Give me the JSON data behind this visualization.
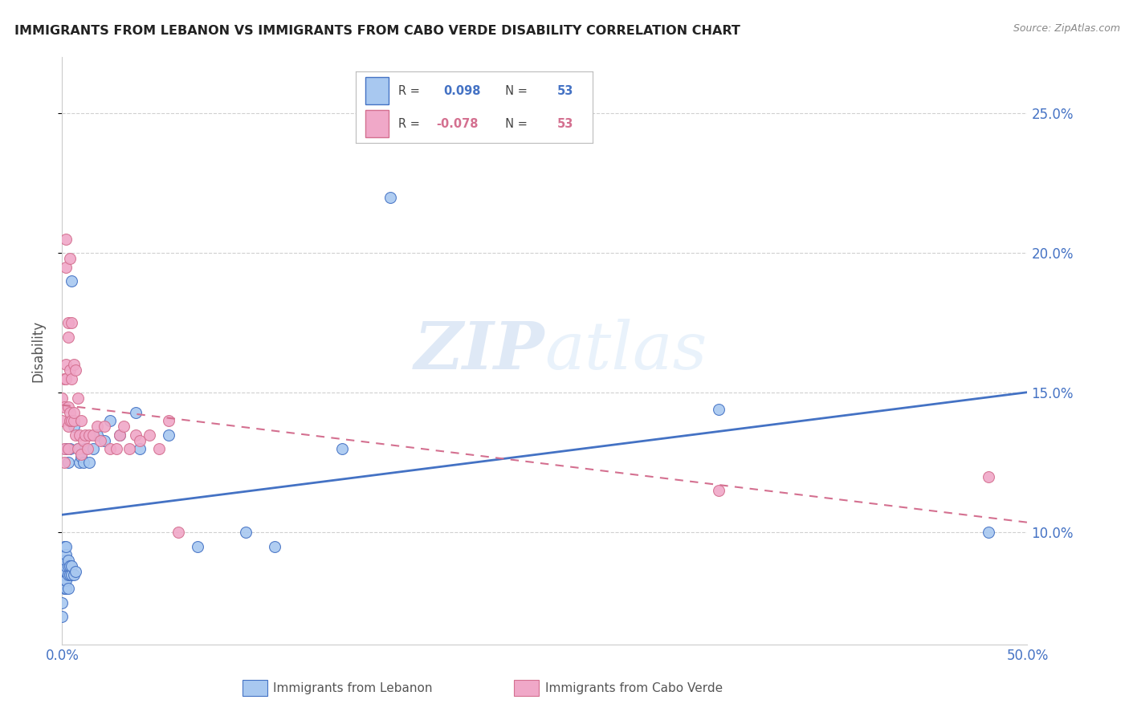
{
  "title": "IMMIGRANTS FROM LEBANON VS IMMIGRANTS FROM CABO VERDE DISABILITY CORRELATION CHART",
  "source": "Source: ZipAtlas.com",
  "ylabel": "Disability",
  "color_lebanon": "#a8c8f0",
  "color_caboverde": "#f0a8c8",
  "color_lebanon_line": "#4472c4",
  "color_caboverde_line": "#d47090",
  "background_color": "#ffffff",
  "xlim": [
    0.0,
    0.5
  ],
  "ylim": [
    0.06,
    0.27
  ],
  "lebanon_x": [
    0.0,
    0.0,
    0.001,
    0.001,
    0.001,
    0.001,
    0.001,
    0.001,
    0.001,
    0.002,
    0.002,
    0.002,
    0.002,
    0.002,
    0.002,
    0.002,
    0.002,
    0.003,
    0.003,
    0.003,
    0.003,
    0.003,
    0.003,
    0.004,
    0.004,
    0.004,
    0.005,
    0.005,
    0.005,
    0.006,
    0.006,
    0.007,
    0.008,
    0.009,
    0.01,
    0.011,
    0.012,
    0.014,
    0.016,
    0.018,
    0.022,
    0.025,
    0.03,
    0.038,
    0.04,
    0.055,
    0.07,
    0.095,
    0.11,
    0.145,
    0.17,
    0.34,
    0.48
  ],
  "lebanon_y": [
    0.07,
    0.075,
    0.08,
    0.082,
    0.085,
    0.087,
    0.088,
    0.09,
    0.095,
    0.08,
    0.083,
    0.086,
    0.088,
    0.09,
    0.092,
    0.095,
    0.13,
    0.08,
    0.085,
    0.088,
    0.09,
    0.125,
    0.13,
    0.085,
    0.088,
    0.13,
    0.085,
    0.088,
    0.19,
    0.085,
    0.138,
    0.086,
    0.13,
    0.125,
    0.127,
    0.125,
    0.13,
    0.125,
    0.13,
    0.135,
    0.133,
    0.14,
    0.135,
    0.143,
    0.13,
    0.135,
    0.095,
    0.1,
    0.095,
    0.13,
    0.22,
    0.144,
    0.1
  ],
  "caboverde_x": [
    0.0,
    0.0,
    0.001,
    0.001,
    0.001,
    0.001,
    0.002,
    0.002,
    0.002,
    0.002,
    0.003,
    0.003,
    0.003,
    0.003,
    0.003,
    0.004,
    0.004,
    0.004,
    0.004,
    0.005,
    0.005,
    0.005,
    0.006,
    0.006,
    0.006,
    0.007,
    0.007,
    0.008,
    0.008,
    0.009,
    0.01,
    0.01,
    0.011,
    0.012,
    0.013,
    0.014,
    0.016,
    0.018,
    0.02,
    0.022,
    0.025,
    0.028,
    0.03,
    0.032,
    0.035,
    0.038,
    0.04,
    0.045,
    0.05,
    0.055,
    0.06,
    0.34,
    0.48
  ],
  "caboverde_y": [
    0.14,
    0.148,
    0.125,
    0.13,
    0.145,
    0.155,
    0.155,
    0.16,
    0.195,
    0.205,
    0.13,
    0.138,
    0.145,
    0.17,
    0.175,
    0.14,
    0.143,
    0.158,
    0.198,
    0.14,
    0.155,
    0.175,
    0.14,
    0.143,
    0.16,
    0.135,
    0.158,
    0.13,
    0.148,
    0.135,
    0.128,
    0.14,
    0.133,
    0.135,
    0.13,
    0.135,
    0.135,
    0.138,
    0.133,
    0.138,
    0.13,
    0.13,
    0.135,
    0.138,
    0.13,
    0.135,
    0.133,
    0.135,
    0.13,
    0.14,
    0.1,
    0.115,
    0.12
  ],
  "r_lebanon": 0.098,
  "r_caboverde": -0.078,
  "n_lebanon": 53,
  "n_caboverde": 53
}
